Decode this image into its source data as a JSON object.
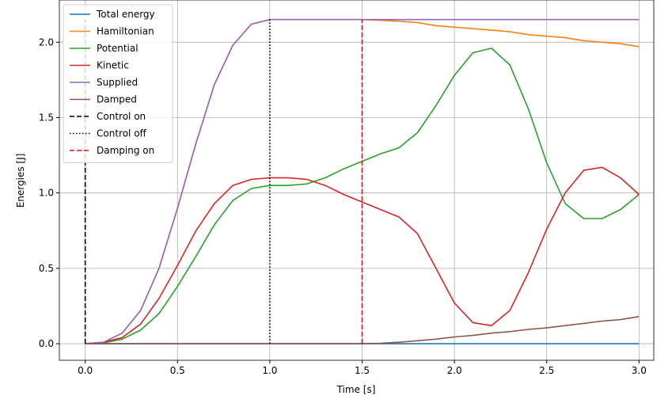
{
  "chart_data": {
    "type": "line",
    "xlabel": "Time [s]",
    "ylabel": "Energies [J]",
    "x": [
      0,
      0.1,
      0.2,
      0.3,
      0.4,
      0.5,
      0.6,
      0.7,
      0.8,
      0.9,
      1.0,
      1.1,
      1.2,
      1.3,
      1.4,
      1.5,
      1.6,
      1.7,
      1.8,
      1.9,
      2.0,
      2.1,
      2.2,
      2.3,
      2.4,
      2.5,
      2.6,
      2.7,
      2.8,
      2.9,
      3.0
    ],
    "series": [
      {
        "name": "Total energy",
        "color": "#1f77b4",
        "values": [
          0,
          0,
          0,
          0,
          0,
          0,
          0,
          0,
          0,
          0,
          0,
          0,
          0,
          0,
          0,
          0,
          0,
          0,
          0,
          0,
          0,
          0,
          0,
          0,
          0,
          0,
          0,
          0,
          0,
          0,
          0
        ]
      },
      {
        "name": "Hamiltonian",
        "color": "#ff7f0e",
        "values": [
          0,
          0.01,
          0.07,
          0.22,
          0.5,
          0.9,
          1.33,
          1.72,
          1.98,
          2.12,
          2.15,
          2.15,
          2.15,
          2.15,
          2.15,
          2.15,
          2.145,
          2.14,
          2.13,
          2.11,
          2.1,
          2.09,
          2.08,
          2.07,
          2.05,
          2.04,
          2.03,
          2.01,
          2.0,
          1.99,
          1.97
        ]
      },
      {
        "name": "Potential",
        "color": "#2ca02c",
        "values": [
          0,
          0.005,
          0.03,
          0.09,
          0.2,
          0.38,
          0.58,
          0.79,
          0.95,
          1.03,
          1.05,
          1.05,
          1.06,
          1.1,
          1.16,
          1.21,
          1.26,
          1.3,
          1.4,
          1.58,
          1.78,
          1.93,
          1.96,
          1.85,
          1.56,
          1.2,
          0.93,
          0.83,
          0.83,
          0.89,
          0.99
        ]
      },
      {
        "name": "Kinetic",
        "color": "#d62728",
        "values": [
          0,
          0.01,
          0.04,
          0.13,
          0.3,
          0.52,
          0.75,
          0.93,
          1.05,
          1.09,
          1.1,
          1.1,
          1.09,
          1.05,
          0.99,
          0.94,
          0.89,
          0.84,
          0.73,
          0.5,
          0.27,
          0.14,
          0.12,
          0.22,
          0.47,
          0.76,
          1.0,
          1.15,
          1.17,
          1.1,
          0.99
        ]
      },
      {
        "name": "Supplied",
        "color": "#9467bd",
        "values": [
          0,
          0.01,
          0.07,
          0.22,
          0.5,
          0.9,
          1.33,
          1.72,
          1.98,
          2.12,
          2.15,
          2.15,
          2.15,
          2.15,
          2.15,
          2.15,
          2.15,
          2.15,
          2.15,
          2.15,
          2.15,
          2.15,
          2.15,
          2.15,
          2.15,
          2.15,
          2.15,
          2.15,
          2.15,
          2.15,
          2.15
        ]
      },
      {
        "name": "Damped",
        "color": "#8c564b",
        "values": [
          0,
          0,
          0,
          0,
          0,
          0,
          0,
          0,
          0,
          0,
          0,
          0,
          0,
          0,
          0,
          0,
          0.003,
          0.01,
          0.02,
          0.03,
          0.045,
          0.055,
          0.07,
          0.08,
          0.095,
          0.105,
          0.12,
          0.135,
          0.15,
          0.16,
          0.18
        ]
      }
    ],
    "vlines": [
      {
        "name": "Control on",
        "x": 0,
        "ymin": 0,
        "ymax": 2.15,
        "color": "#000000",
        "style": "dashed"
      },
      {
        "name": "Control off",
        "x": 1.0,
        "ymin": 0,
        "ymax": 2.15,
        "color": "#000000",
        "style": "dotted"
      },
      {
        "name": "Damping on",
        "x": 1.5,
        "ymin": 0,
        "ymax": 2.15,
        "color": "#ff0000",
        "style": "dashed"
      }
    ],
    "xlim": [
      -0.14,
      3.08
    ],
    "ylim": [
      -0.11,
      2.28
    ],
    "xticks": [
      {
        "value": 0,
        "label": "0.0"
      },
      {
        "value": 0.5,
        "label": "0.5"
      },
      {
        "value": 1.0,
        "label": "1.0"
      },
      {
        "value": 1.5,
        "label": "1.5"
      },
      {
        "value": 2.0,
        "label": "2.0"
      },
      {
        "value": 2.5,
        "label": "2.5"
      },
      {
        "value": 3.0,
        "label": "3.0"
      }
    ],
    "yticks": [
      {
        "value": 0,
        "label": "0.0"
      },
      {
        "value": 0.5,
        "label": "0.5"
      },
      {
        "value": 1.0,
        "label": "1.0"
      },
      {
        "value": 1.5,
        "label": "1.5"
      },
      {
        "value": 2.0,
        "label": "2.0"
      }
    ],
    "grid": true,
    "legend": "upper left"
  }
}
